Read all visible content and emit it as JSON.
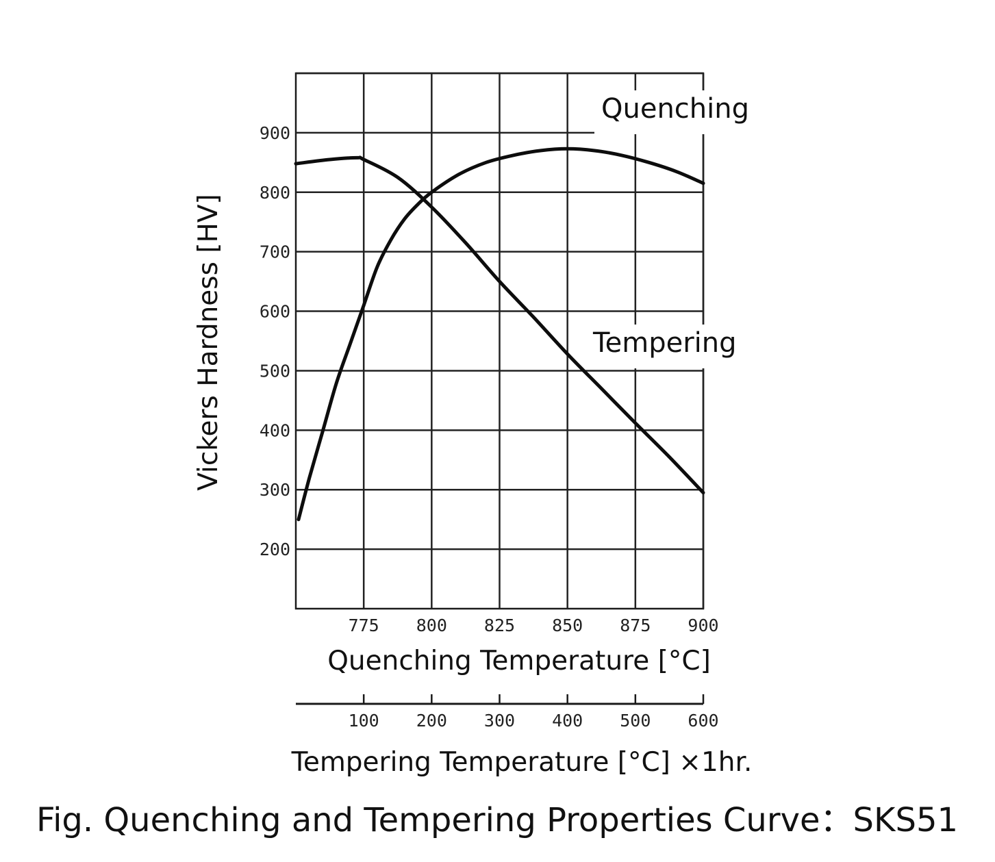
{
  "figure": {
    "caption": "Fig. Quenching and Tempering Properties Curve：SKS51"
  },
  "chart_data": {
    "type": "line",
    "ylabel": "Vickers Hardness [HV]",
    "ylim": [
      100,
      1000
    ],
    "yticks": [
      200,
      300,
      400,
      500,
      600,
      700,
      800,
      900
    ],
    "grid": true,
    "x_axes": [
      {
        "id": "quenching",
        "label": "Quenching Temperature [°C]",
        "range": [
          750,
          900
        ],
        "ticks": [
          775,
          800,
          825,
          850,
          875,
          900
        ]
      },
      {
        "id": "tempering",
        "label": "Tempering Temperature [°C] ×1hr.",
        "range": [
          0,
          600
        ],
        "ticks": [
          100,
          200,
          300,
          400,
          500,
          600
        ]
      }
    ],
    "series": [
      {
        "name": "Quenching",
        "x_axis": "quenching",
        "x": [
          751,
          755,
          760,
          765,
          770,
          775,
          780,
          785,
          790,
          795,
          800,
          810,
          820,
          830,
          840,
          850,
          860,
          870,
          880,
          890,
          900
        ],
        "y": [
          250,
          320,
          400,
          480,
          545,
          610,
          675,
          720,
          755,
          780,
          800,
          830,
          850,
          862,
          870,
          873,
          870,
          862,
          850,
          835,
          815
        ]
      },
      {
        "name": "Tempering",
        "x_axis": "tempering",
        "x": [
          0,
          50,
          90,
          100,
          150,
          200,
          250,
          300,
          350,
          400,
          450,
          500,
          550,
          600
        ],
        "y": [
          848,
          855,
          858,
          855,
          825,
          775,
          715,
          650,
          590,
          528,
          470,
          412,
          355,
          295
        ]
      }
    ]
  }
}
